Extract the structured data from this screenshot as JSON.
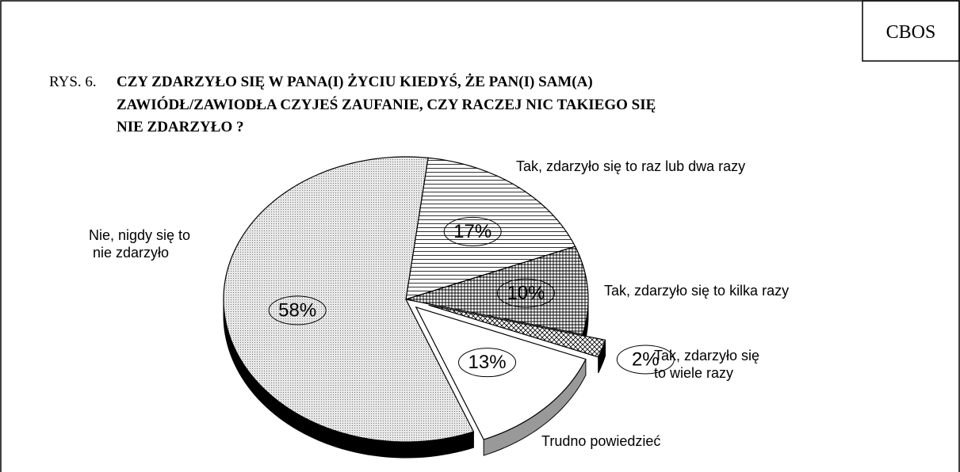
{
  "source": "CBOS",
  "chart_data": {
    "type": "pie",
    "figure_label": "RYS. 6.",
    "title": [
      "CZY ZDARZYŁO SIĘ W PANA(I) ŻYCIU KIEDYŚ, ŻE PAN(I) SAM(A)",
      "ZAWIÓDŁ/ZAWIODŁA CZYJEŚ ZAUFANIE, CZY RACZEJ NIC TAKIEGO SIĘ",
      "NIE  ZDARZYŁO ?"
    ],
    "categories": [
      "Tak, zdarzyło się to raz lub dwa razy",
      "Tak, zdarzyło się to kilka razy",
      "Tak, zdarzyło się\nto wiele razy",
      "Trudno powiedzieć",
      "Nie, nigdy się to\n nie zdarzyło"
    ],
    "values": [
      17,
      10,
      2,
      13,
      58
    ],
    "value_labels": [
      "17%",
      "10%",
      "2%",
      "13%",
      "58%"
    ]
  }
}
